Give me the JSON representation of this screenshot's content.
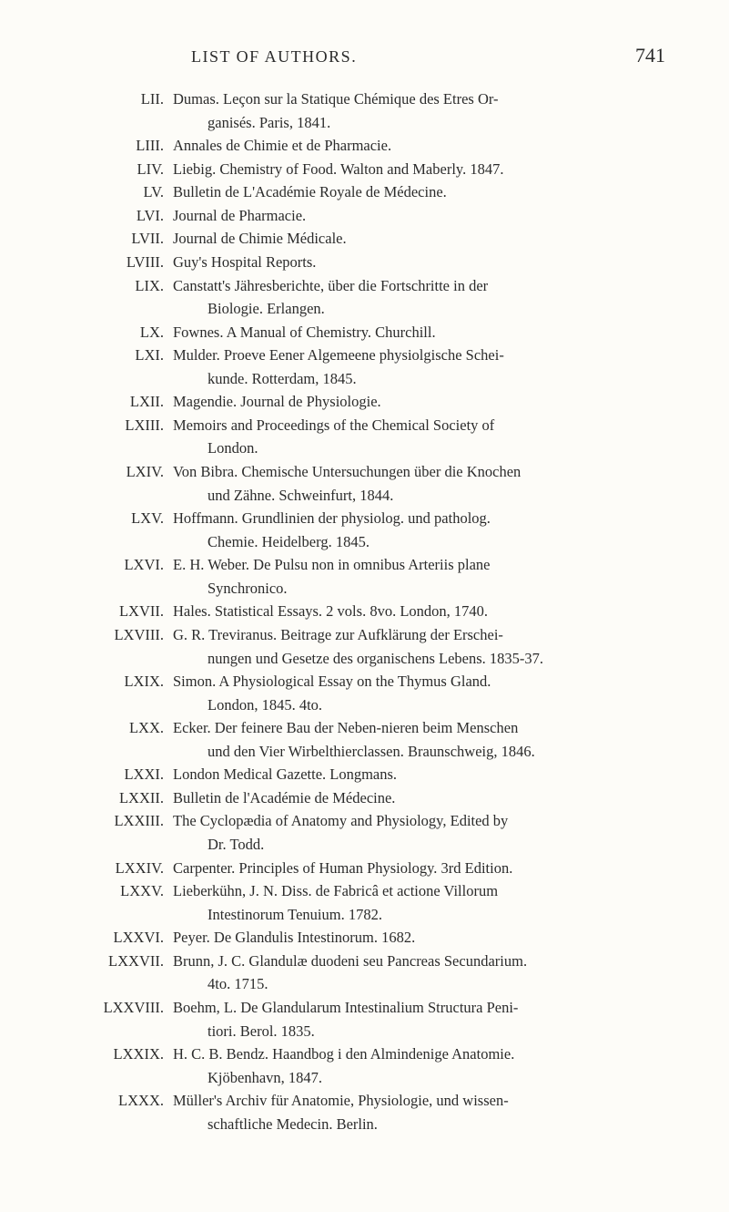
{
  "header": {
    "title": "LIST OF AUTHORS.",
    "page_number": "741"
  },
  "entries": [
    {
      "num": "LII.",
      "lines": [
        "Dumas.  Leçon sur la Statique Chémique des Etres Or-",
        "ganisés.  Paris, 1841."
      ]
    },
    {
      "num": "LIII.",
      "lines": [
        "Annales de Chimie et de Pharmacie."
      ]
    },
    {
      "num": "LIV.",
      "lines": [
        "Liebig.  Chemistry of Food.  Walton and Maberly.  1847."
      ]
    },
    {
      "num": "LV.",
      "lines": [
        "Bulletin de L'Académie Royale de Médecine."
      ]
    },
    {
      "num": "LVI.",
      "lines": [
        "Journal de Pharmacie."
      ]
    },
    {
      "num": "LVII.",
      "lines": [
        "Journal de Chimie Médicale."
      ]
    },
    {
      "num": "LVIII.",
      "lines": [
        "Guy's Hospital Reports."
      ]
    },
    {
      "num": "LIX.",
      "lines": [
        "Canstatt's Jähresberichte, über die Fortschritte in der",
        "Biologie.  Erlangen."
      ]
    },
    {
      "num": "LX.",
      "lines": [
        "Fownes.  A Manual of Chemistry.  Churchill."
      ]
    },
    {
      "num": "LXI.",
      "lines": [
        "Mulder.  Proeve Eener Algemeene physiolgische Schei-",
        "kunde.  Rotterdam, 1845."
      ]
    },
    {
      "num": "LXII.",
      "lines": [
        "Magendie.  Journal de Physiologie."
      ]
    },
    {
      "num": "LXIII.",
      "lines": [
        "Memoirs and Proceedings of the Chemical Society of",
        "London."
      ]
    },
    {
      "num": "LXIV.",
      "lines": [
        "Von Bibra.  Chemische Untersuchungen über die Knochen",
        "und Zähne.  Schweinfurt, 1844."
      ]
    },
    {
      "num": "LXV.",
      "lines": [
        "Hoffmann.    Grundlinien der physiolog. und patholog.",
        "Chemie.  Heidelberg.  1845."
      ]
    },
    {
      "num": "LXVI.",
      "lines": [
        "E. H. Weber.  De Pulsu non in omnibus Arteriis plane",
        "Synchronico."
      ]
    },
    {
      "num": "LXVII.",
      "lines": [
        "Hales.  Statistical Essays.  2 vols. 8vo.  London, 1740."
      ]
    },
    {
      "num": "LXVIII.",
      "lines": [
        "G. R. Treviranus.   Beitrage zur Aufklärung der Erschei-",
        "nungen und Gesetze des organischens Lebens. 1835-37."
      ]
    },
    {
      "num": "LXIX.",
      "lines": [
        "Simon.  A Physiological Essay on the Thymus Gland.",
        "London, 1845.  4to."
      ]
    },
    {
      "num": "LXX.",
      "lines": [
        "Ecker.  Der feinere Bau der Neben-nieren beim Menschen",
        "und den Vier Wirbelthierclassen.  Braunschweig, 1846."
      ]
    },
    {
      "num": "LXXI.",
      "lines": [
        "London Medical Gazette.  Longmans."
      ]
    },
    {
      "num": "LXXII.",
      "lines": [
        "Bulletin de l'Académie de Médecine."
      ]
    },
    {
      "num": "LXXIII.",
      "lines": [
        "The Cyclopædia of Anatomy and Physiology, Edited by",
        "Dr. Todd."
      ]
    },
    {
      "num": "LXXIV.",
      "lines": [
        "Carpenter.  Principles of Human Physiology. 3rd Edition."
      ]
    },
    {
      "num": "LXXV.",
      "lines": [
        "Lieberkühn, J. N.  Diss. de Fabricâ et actione Villorum",
        "Intestinorum Tenuium.  1782."
      ]
    },
    {
      "num": "LXXVI.",
      "lines": [
        "Peyer.  De Glandulis Intestinorum.  1682."
      ]
    },
    {
      "num": "LXXVII.",
      "lines": [
        "Brunn, J. C.  Glandulæ duodeni seu Pancreas Secundarium.",
        "4to. 1715."
      ]
    },
    {
      "num": "LXXVIII.",
      "lines": [
        "Boehm, L.  De Glandularum Intestinalium Structura Peni-",
        "tiori.  Berol. 1835."
      ]
    },
    {
      "num": "LXXIX.",
      "lines": [
        "H. C. B. Bendz.  Haandbog i den Almindenige Anatomie.",
        "Kjöbenhavn, 1847."
      ]
    },
    {
      "num": "LXXX.",
      "lines": [
        "Müller's Archiv für Anatomie, Physiologie, und wissen-",
        "schaftliche Medecin.  Berlin."
      ]
    }
  ]
}
